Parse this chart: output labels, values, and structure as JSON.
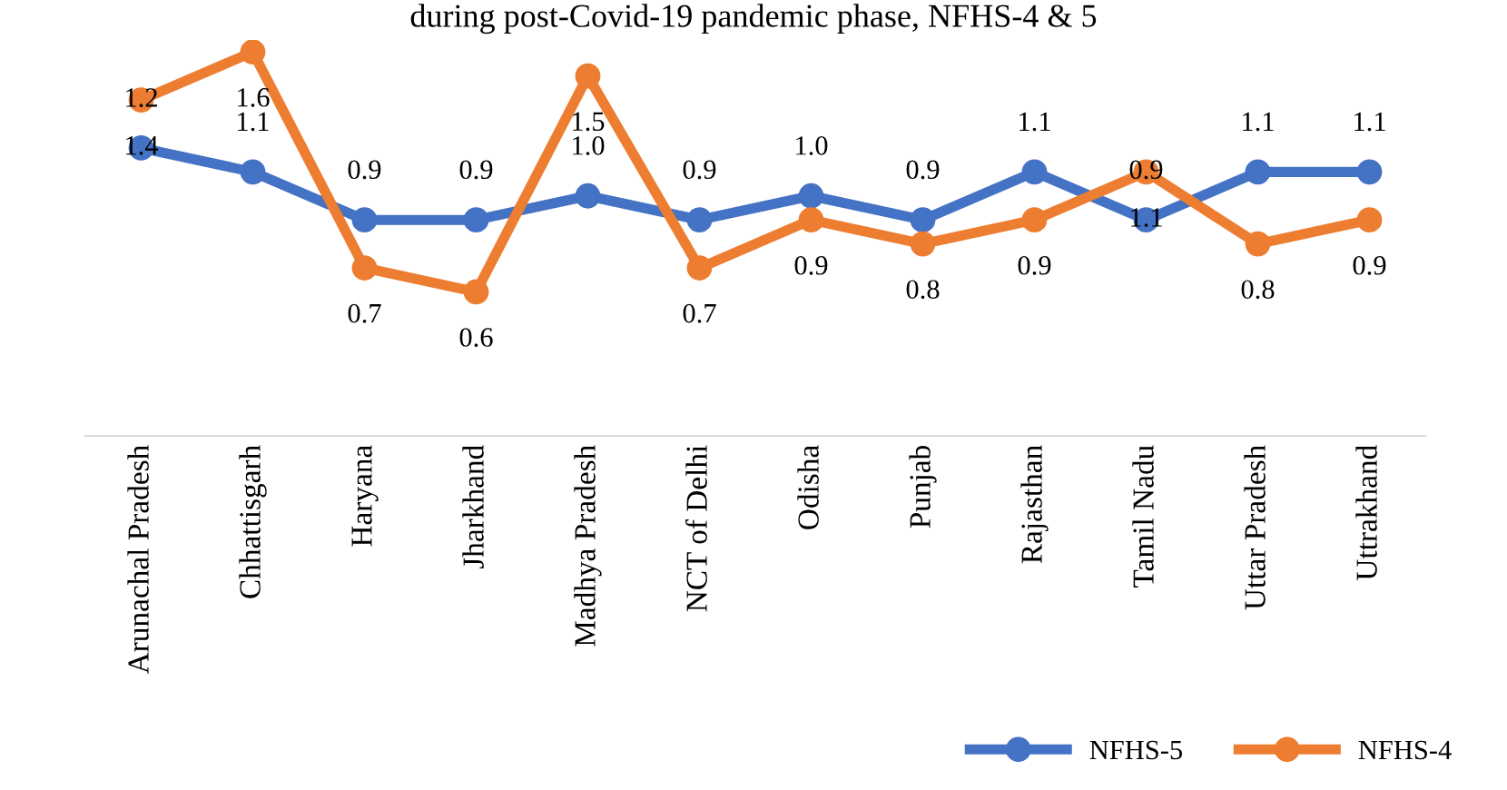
{
  "chart_data": {
    "type": "line",
    "title": "during post-Covid-19 pandemic phase, NFHS-4 & 5",
    "categories": [
      "Arunachal Pradesh",
      "Chhattisgarh",
      "Haryana",
      "Jharkhand",
      "Madhya Pradesh",
      "NCT of Delhi",
      "Odisha",
      "Punjab",
      "Rajasthan",
      "Tamil Nadu",
      "Uttar Pradesh",
      "Uttrakhand"
    ],
    "series": [
      {
        "name": "NFHS-5",
        "color": "#4472c4",
        "values": [
          1.2,
          1.1,
          0.9,
          0.9,
          1.0,
          0.9,
          1.0,
          0.9,
          1.1,
          0.9,
          1.1,
          1.1
        ],
        "value_labels": [
          "1.2",
          "1.1",
          "0.9",
          "0.9",
          "1.0",
          "0.9",
          "1.0",
          "0.9",
          "1.1",
          "0.9",
          "1.1",
          "1.1"
        ]
      },
      {
        "name": "NFHS-4",
        "color": "#ed7d31",
        "values": [
          1.4,
          1.6,
          0.7,
          0.6,
          1.5,
          0.7,
          0.9,
          0.8,
          0.9,
          1.1,
          0.8,
          0.9
        ],
        "value_labels": [
          "1.4",
          "1.6",
          "0.7",
          "0.6",
          "1.5",
          "0.7",
          "0.9",
          "0.8",
          "0.9",
          "1.1",
          "0.8",
          "0.9"
        ]
      }
    ],
    "tick_labels": "x",
    "marker": "circle",
    "line_style": "solid",
    "grid": false,
    "legend": "bottom right"
  }
}
